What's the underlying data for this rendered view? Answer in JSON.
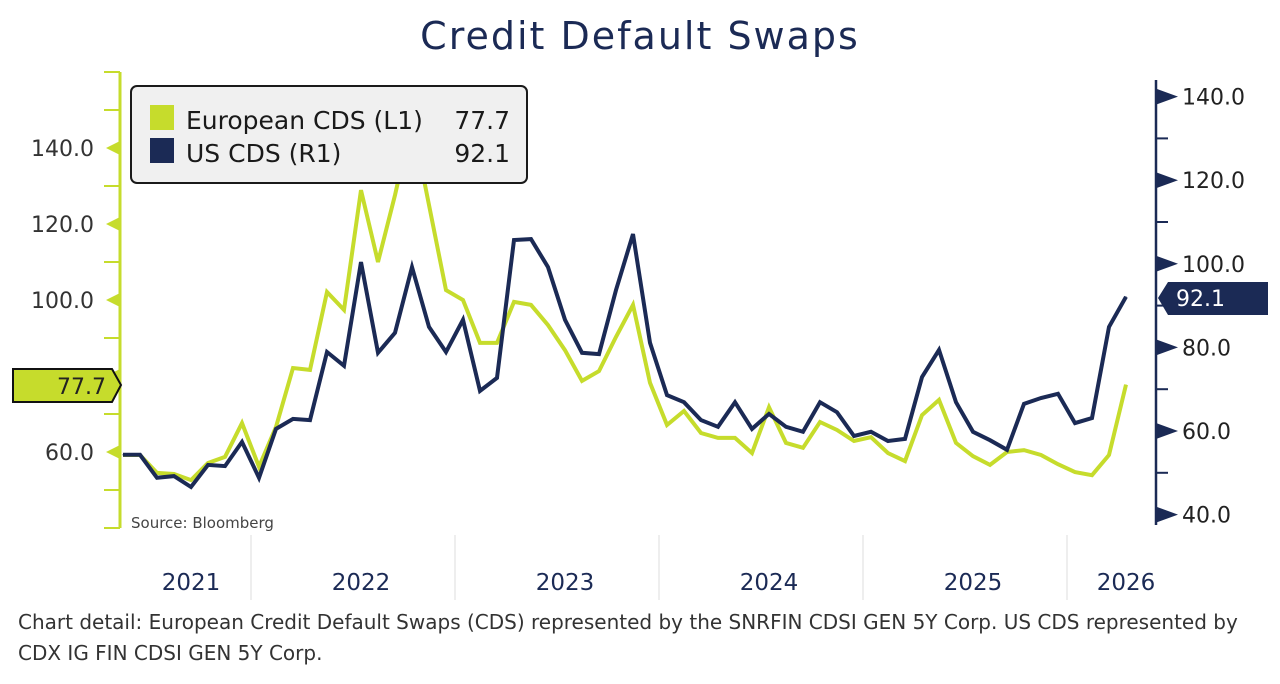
{
  "title": "Credit Default Swaps",
  "source": "Source: Bloomberg",
  "footer": "Chart detail: European Credit Default Swaps (CDS) represented by the SNRFIN CDSI GEN 5Y Corp. US CDS represented by CDX IG FIN CDSI GEN 5Y Corp.",
  "colors": {
    "european": "#c6dc2c",
    "us": "#1b2a55",
    "legend_bg": "#f0f0f0"
  },
  "legend": {
    "placement": "top-left",
    "items": [
      {
        "label": "European CDS (L1)",
        "value": "77.7"
      },
      {
        "label": "US CDS (R1)",
        "value": "92.1"
      }
    ]
  },
  "chart_data": {
    "type": "line",
    "title": "Credit Default Swaps",
    "grid": false,
    "x": [
      "2021-05",
      "2021-06",
      "2021-07",
      "2021-08",
      "2021-09",
      "2021-10",
      "2021-11",
      "2021-12",
      "2022-01",
      "2022-02",
      "2022-03",
      "2022-04",
      "2022-05",
      "2022-06",
      "2022-07",
      "2022-08",
      "2022-09",
      "2022-10",
      "2022-11",
      "2022-12",
      "2023-01",
      "2023-02",
      "2023-03",
      "2023-04",
      "2023-05",
      "2023-06",
      "2023-07",
      "2023-08",
      "2023-09",
      "2023-10",
      "2023-11",
      "2023-12",
      "2024-01",
      "2024-02",
      "2024-03",
      "2024-04",
      "2024-05",
      "2024-06",
      "2024-07",
      "2024-08",
      "2024-09",
      "2024-10",
      "2024-11",
      "2024-12",
      "2025-01",
      "2025-02",
      "2025-03",
      "2025-04",
      "2025-05",
      "2025-06",
      "2025-07",
      "2025-08",
      "2025-09",
      "2025-10",
      "2025-11",
      "2025-12",
      "2026-01",
      "2026-02",
      "2026-03",
      "2026-04"
    ],
    "xticks": [
      {
        "label": "2021",
        "at": "2021-09"
      },
      {
        "label": "2022",
        "at": "2022-07"
      },
      {
        "label": "2023",
        "at": "2023-07"
      },
      {
        "label": "2024",
        "at": "2024-07"
      },
      {
        "label": "2025",
        "at": "2025-07"
      },
      {
        "label": "2026",
        "at": "2026-04"
      }
    ],
    "left_axis": {
      "ylim": [
        40,
        160
      ],
      "ticks": [
        40,
        50,
        60,
        70,
        80,
        90,
        100,
        110,
        120,
        130,
        140,
        150,
        160
      ],
      "labeled": [
        "60.0",
        "100.0",
        "120.0",
        "140.0"
      ],
      "label_values": [
        60,
        100,
        120,
        140
      ],
      "last_value_label": "77.7"
    },
    "right_axis": {
      "ylim": [
        37,
        144
      ],
      "ticks": [
        40,
        50,
        60,
        70,
        80,
        90,
        100,
        110,
        120,
        130,
        140
      ],
      "labeled": [
        "40.0",
        "60.0",
        "80.0",
        "100.0",
        "120.0",
        "140.0"
      ],
      "label_values": [
        40,
        60,
        80,
        100,
        120,
        140
      ],
      "last_value_label": "92.1"
    },
    "series": [
      {
        "name": "European CDS (L1)",
        "axis": "left",
        "values": [
          59.2,
          59.2,
          54.5,
          54.2,
          52.6,
          57.1,
          58.7,
          67.6,
          56.1,
          66.6,
          82.1,
          81.6,
          102.1,
          97.4,
          128.9,
          110.0,
          127.6,
          147.4,
          125.0,
          102.6,
          100.0,
          88.7,
          88.7,
          99.5,
          98.7,
          93.4,
          86.8,
          78.7,
          81.3,
          90.3,
          98.7,
          78.2,
          67.1,
          70.8,
          65.0,
          63.7,
          63.7,
          59.7,
          71.8,
          62.4,
          61.1,
          67.9,
          65.8,
          62.9,
          63.9,
          59.7,
          57.6,
          69.7,
          73.7,
          62.4,
          58.9,
          56.6,
          60.0,
          60.5,
          59.2,
          56.8,
          54.7,
          53.9,
          59.2,
          77.7
        ]
      },
      {
        "name": "US CDS (R1)",
        "axis": "right",
        "values": [
          54.3,
          54.3,
          48.8,
          49.2,
          46.6,
          51.9,
          51.6,
          57.4,
          48.8,
          60.5,
          62.9,
          62.6,
          78.9,
          75.6,
          100.4,
          78.7,
          83.5,
          99.2,
          84.9,
          78.9,
          86.6,
          69.6,
          72.7,
          105.7,
          105.9,
          99.2,
          86.6,
          78.7,
          78.4,
          93.7,
          107.1,
          81.1,
          68.6,
          66.9,
          62.6,
          61.0,
          66.9,
          60.5,
          64.1,
          61.0,
          59.8,
          66.9,
          64.5,
          58.8,
          59.8,
          57.6,
          58.1,
          72.9,
          79.4,
          66.9,
          59.8,
          57.8,
          55.5,
          66.5,
          67.9,
          68.9,
          61.9,
          63.1,
          84.9,
          92.1
        ]
      }
    ]
  }
}
